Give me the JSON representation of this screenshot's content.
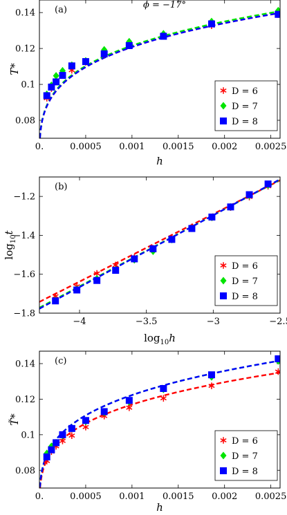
{
  "header": {
    "phi_label": "ϕ = −17°"
  },
  "chart_data": [
    {
      "type": "line",
      "panel": "(a)",
      "xlabel": "h",
      "ylabel": "T*",
      "xlim": [
        0,
        0.0026
      ],
      "ylim": [
        0.07,
        0.147
      ],
      "xticks": [
        0,
        0.0005,
        0.001,
        0.0015,
        0.002,
        0.0025
      ],
      "xtick_labels": [
        "0.",
        "0.0005",
        "0.001",
        "0.0015",
        "0.002",
        "0.0025"
      ],
      "yticks": [
        0.08,
        0.1,
        0.12,
        0.14
      ],
      "ytick_labels": [
        "0.08",
        "0.1",
        "0.12",
        "0.14"
      ],
      "legend_position": "bottom-right",
      "fit": {
        "form": "a + b*x^p",
        "p": 0.25,
        "x_start": 1e-07,
        "x_end": 0.00262
      },
      "series": [
        {
          "name": "D = 6",
          "color": "#ff0000",
          "marker": "asterisk",
          "fit_a": 0.0505,
          "fit_b": 0.3954,
          "x": [
            8e-05,
            0.00013,
            0.00018,
            0.00025,
            0.00035,
            0.0005,
            0.0007,
            0.00097,
            0.00134,
            0.00186,
            0.00258
          ],
          "y": [
            0.0923,
            0.0977,
            0.1015,
            0.1051,
            0.1079,
            0.1123,
            0.1167,
            0.1215,
            0.1272,
            0.1327,
            0.1389
          ]
        },
        {
          "name": "D = 7",
          "color": "#00e400",
          "marker": "diamond",
          "fit_a": 0.0505,
          "fit_b": 0.3997,
          "x": [
            8e-05,
            0.00013,
            0.00018,
            0.00025,
            0.00035,
            0.0005,
            0.0007,
            0.00097,
            0.00134,
            0.00186,
            0.00258
          ],
          "y": [
            0.0945,
            0.0995,
            0.1048,
            0.1076,
            0.1107,
            0.1131,
            0.1193,
            0.1238,
            0.1282,
            0.135,
            0.1411
          ]
        },
        {
          "name": "D = 8",
          "color": "#0000ff",
          "marker": "square",
          "fit_a": 0.0505,
          "fit_b": 0.3954,
          "x": [
            8e-05,
            0.00013,
            0.00018,
            0.00025,
            0.00035,
            0.0005,
            0.0007,
            0.00097,
            0.00134,
            0.00186,
            0.00258
          ],
          "y": [
            0.0937,
            0.0985,
            0.1014,
            0.105,
            0.1103,
            0.1127,
            0.117,
            0.1216,
            0.1268,
            0.1337,
            0.139
          ]
        }
      ]
    },
    {
      "type": "line",
      "panel": "(b)",
      "xlabel": "log10 h",
      "ylabel": "log10 t",
      "xlim": [
        -4.3,
        -2.5
      ],
      "ylim": [
        -1.8,
        -1.1
      ],
      "xticks": [
        -4,
        -3.5,
        -3,
        -2.5
      ],
      "xtick_labels": [
        "−4",
        "−3.5",
        "−3",
        "−2.5"
      ],
      "yticks": [
        -1.8,
        -1.6,
        -1.4,
        -1.2
      ],
      "ytick_labels": [
        "−1.8",
        "−1.6",
        "−1.4",
        "−1.2"
      ],
      "legend_position": "bottom-right",
      "series": [
        {
          "name": "D = 6",
          "color": "#ff0000",
          "marker": "asterisk",
          "fit": [
            [
              -4.3,
              -1.742
            ],
            [
              -2.5,
              -1.117
            ]
          ],
          "x": [
            -4.18,
            -4.02,
            -3.87,
            -3.73,
            -3.59,
            -3.45,
            -3.31,
            -3.16,
            -3.01,
            -2.87,
            -2.73,
            -2.59
          ],
          "y": [
            -1.713,
            -1.662,
            -1.596,
            -1.553,
            -1.513,
            -1.467,
            -1.415,
            -1.357,
            -1.309,
            -1.257,
            -1.203,
            -1.148
          ]
        },
        {
          "name": "D = 7",
          "color": "#00e400",
          "marker": "diamond",
          "fit": [
            [
              -4.3,
              -1.772
            ],
            [
              -2.5,
              -1.114
            ]
          ],
          "x": [
            -4.18,
            -4.02,
            -3.87,
            -3.73,
            -3.59,
            -3.45,
            -3.31,
            -3.16,
            -3.01,
            -2.87,
            -2.73,
            -2.59
          ],
          "y": [
            -1.734,
            -1.677,
            -1.623,
            -1.577,
            -1.526,
            -1.482,
            -1.422,
            -1.364,
            -1.308,
            -1.254,
            -1.196,
            -1.142
          ]
        },
        {
          "name": "D = 8",
          "color": "#0000ff",
          "marker": "square",
          "fit": [
            [
              -4.3,
              -1.777
            ],
            [
              -2.5,
              -1.112
            ]
          ],
          "x": [
            -4.18,
            -4.02,
            -3.87,
            -3.73,
            -3.59,
            -3.45,
            -3.31,
            -3.16,
            -3.01,
            -2.87,
            -2.73,
            -2.59
          ],
          "y": [
            -1.737,
            -1.681,
            -1.632,
            -1.58,
            -1.521,
            -1.469,
            -1.421,
            -1.365,
            -1.306,
            -1.254,
            -1.191,
            -1.136
          ]
        }
      ]
    },
    {
      "type": "line",
      "panel": "(c)",
      "xlabel": "h",
      "ylabel": "T̃*",
      "xlim": [
        0,
        0.0026
      ],
      "ylim": [
        0.07,
        0.147
      ],
      "xticks": [
        0,
        0.0005,
        0.001,
        0.0015,
        0.002,
        0.0025
      ],
      "xtick_labels": [
        "0.",
        "0.0005",
        "0.001",
        "0.0015",
        "0.002",
        "0.0025"
      ],
      "yticks": [
        0.08,
        0.1,
        0.12,
        0.14
      ],
      "ytick_labels": [
        "0.08",
        "0.1",
        "0.12",
        "0.14"
      ],
      "legend_position": "bottom-right",
      "fit": {
        "form": "a + b*x^p",
        "p": 0.25,
        "x_start": 1e-07,
        "x_end": 0.00262
      },
      "series": [
        {
          "name": "D = 6",
          "color": "#ff0000",
          "marker": "asterisk",
          "fit_a": 0.0505,
          "fit_b": 0.3738,
          "x": [
            8e-05,
            0.00013,
            0.00018,
            0.00025,
            0.00035,
            0.0005,
            0.0007,
            0.00097,
            0.00134,
            0.00186,
            0.00258
          ],
          "y": [
            0.0852,
            0.0905,
            0.0935,
            0.0965,
            0.0995,
            0.1043,
            0.1105,
            0.1152,
            0.1205,
            0.1275,
            0.1355
          ]
        },
        {
          "name": "D = 7",
          "color": "#00e400",
          "marker": "diamond",
          "fit_a": 0.0505,
          "fit_b": 0.4037,
          "x": [
            8e-05,
            0.00013,
            0.00018,
            0.00025,
            0.00035,
            0.0005,
            0.0007,
            0.00097,
            0.00134,
            0.00186,
            0.00258
          ],
          "y": [
            0.0895,
            0.0935,
            0.0955,
            0.0995,
            0.1035,
            0.1075,
            0.1125,
            0.1185,
            0.1255,
            0.1325,
            0.1415
          ]
        },
        {
          "name": "D = 8",
          "color": "#0000ff",
          "marker": "square",
          "fit_a": 0.0505,
          "fit_b": 0.4037,
          "x": [
            8e-05,
            0.00013,
            0.00018,
            0.00025,
            0.00035,
            0.0005,
            0.0007,
            0.00097,
            0.00134,
            0.00186,
            0.00258
          ],
          "y": [
            0.0875,
            0.0915,
            0.0955,
            0.1,
            0.1035,
            0.108,
            0.113,
            0.1193,
            0.126,
            0.1337,
            0.1427
          ]
        }
      ]
    }
  ]
}
